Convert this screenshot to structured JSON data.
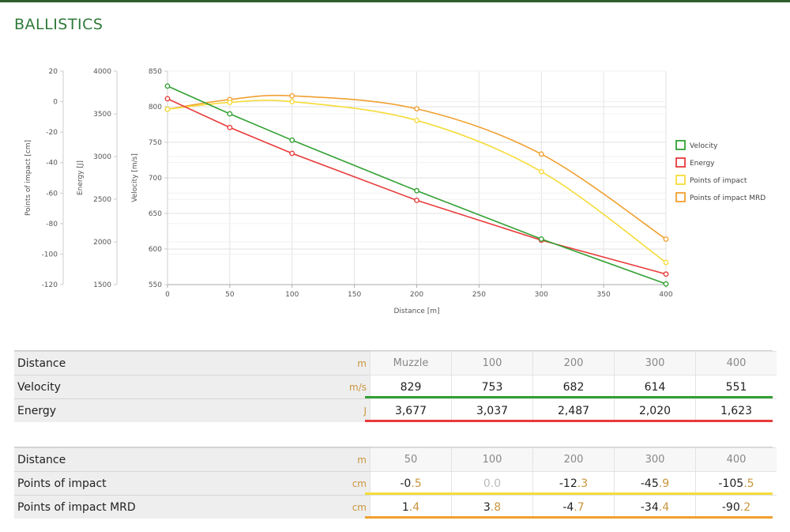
{
  "page": {
    "title": "BALLISTICS"
  },
  "colors": {
    "velocity": "#33a033",
    "energy": "#e83a3a",
    "poi": "#f5dc3a",
    "poi_mrd": "#f0a030"
  },
  "chart_data": {
    "type": "line",
    "xlabel": "Distance [m]",
    "x_ticks": [
      0,
      50,
      100,
      150,
      200,
      250,
      300,
      350,
      400
    ],
    "xlim": [
      0,
      400
    ],
    "axes": [
      {
        "id": "poi",
        "label": "Points of impact [cm]",
        "ticks": [
          20,
          0,
          -20,
          -40,
          -60,
          -80,
          -100,
          -120
        ],
        "ylim": [
          -120,
          20
        ]
      },
      {
        "id": "energy",
        "label": "Energy [J]",
        "ticks": [
          4000,
          3500,
          3000,
          2500,
          2000,
          1500
        ],
        "ylim": [
          1500,
          4000
        ]
      },
      {
        "id": "velocity",
        "label": "Velocity [m/s]",
        "ticks": [
          850,
          800,
          750,
          700,
          650,
          600,
          550
        ],
        "ylim": [
          550,
          850
        ]
      }
    ],
    "series": [
      {
        "name": "Velocity",
        "axis": "velocity",
        "color": "#33a033",
        "x": [
          0,
          50,
          100,
          200,
          300,
          400
        ],
        "values": [
          829,
          790,
          753,
          682,
          614,
          551
        ]
      },
      {
        "name": "Energy",
        "axis": "energy",
        "color": "#e83a3a",
        "x": [
          0,
          50,
          100,
          200,
          300,
          400
        ],
        "values": [
          3677,
          3340,
          3037,
          2487,
          2020,
          1623
        ]
      },
      {
        "name": "Points of impact",
        "axis": "poi",
        "color": "#f5dc3a",
        "x": [
          0,
          50,
          100,
          200,
          300,
          400
        ],
        "values": [
          -5,
          -0.5,
          0,
          -12.3,
          -45.9,
          -105.5
        ]
      },
      {
        "name": "Points of impact MRD",
        "axis": "poi",
        "color": "#f0a030",
        "x": [
          0,
          50,
          100,
          200,
          300,
          400
        ],
        "values": [
          -5,
          1.4,
          3.8,
          -4.7,
          -34.4,
          -90.2
        ]
      }
    ],
    "legend": "right",
    "grid": true
  },
  "table1": {
    "rows": [
      {
        "label": "Distance",
        "unit": "m",
        "header": true,
        "cells": [
          [
            "Muzzle",
            ""
          ],
          [
            "100",
            ""
          ],
          [
            "200",
            ""
          ],
          [
            "300",
            ""
          ],
          [
            "400",
            ""
          ]
        ]
      },
      {
        "label": "Velocity",
        "unit": "m/s",
        "bar": "velocity",
        "cells": [
          [
            "829",
            ""
          ],
          [
            "753",
            ""
          ],
          [
            "682",
            ""
          ],
          [
            "614",
            ""
          ],
          [
            "551",
            ""
          ]
        ]
      },
      {
        "label": "Energy",
        "unit": "J",
        "bar": "energy",
        "cells": [
          [
            "3,677",
            ""
          ],
          [
            "3,037",
            ""
          ],
          [
            "2,487",
            ""
          ],
          [
            "2,020",
            ""
          ],
          [
            "1,623",
            ""
          ]
        ]
      }
    ]
  },
  "table2": {
    "rows": [
      {
        "label": "Distance",
        "unit": "m",
        "header": true,
        "cells": [
          [
            "50",
            ""
          ],
          [
            "100",
            ""
          ],
          [
            "200",
            ""
          ],
          [
            "300",
            ""
          ],
          [
            "400",
            ""
          ]
        ]
      },
      {
        "label": "Points of impact",
        "unit": "cm",
        "bar": "poi",
        "cells": [
          [
            "-0",
            ".5"
          ],
          [
            "0.0",
            ""
          ],
          [
            "-12",
            ".3"
          ],
          [
            "-45",
            ".9"
          ],
          [
            "-105",
            ".5"
          ]
        ]
      },
      {
        "label": "Points of impact MRD",
        "unit": "cm",
        "bar": "poi_mrd",
        "cells": [
          [
            "1",
            ".4"
          ],
          [
            "3",
            ".8"
          ],
          [
            "-4",
            ".7"
          ],
          [
            "-34",
            ".4"
          ],
          [
            "-90",
            ".2"
          ]
        ]
      }
    ]
  }
}
